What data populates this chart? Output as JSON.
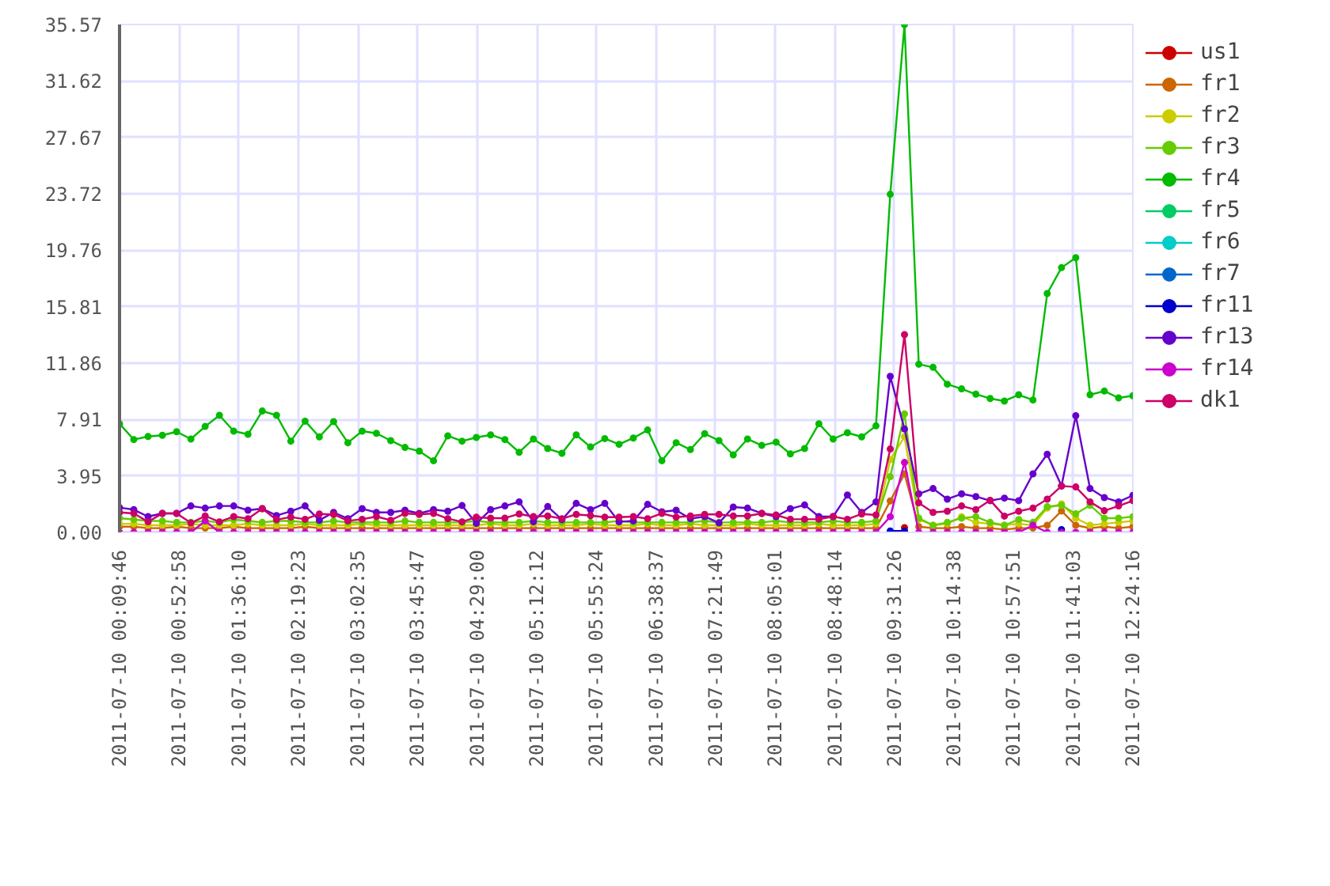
{
  "chart_data": {
    "type": "line",
    "marker": "circle",
    "grid": true,
    "legend": "right",
    "x": [
      "2011-07-10T00:09:46",
      "2011-07-10T00:20:06",
      "2011-07-10T00:30:27",
      "2011-07-10T00:40:48",
      "2011-07-10T00:51:08",
      "2011-07-10T01:01:29",
      "2011-07-10T01:11:50",
      "2011-07-10T01:22:10",
      "2011-07-10T01:32:31",
      "2011-07-10T01:42:52",
      "2011-07-10T01:53:13",
      "2011-07-10T02:03:33",
      "2011-07-10T02:13:54",
      "2011-07-10T02:24:15",
      "2011-07-10T02:34:35",
      "2011-07-10T02:44:56",
      "2011-07-10T02:55:17",
      "2011-07-10T03:05:38",
      "2011-07-10T03:15:58",
      "2011-07-10T03:26:19",
      "2011-07-10T03:36:40",
      "2011-07-10T03:47:00",
      "2011-07-10T03:57:21",
      "2011-07-10T04:07:42",
      "2011-07-10T04:18:02",
      "2011-07-10T04:28:23",
      "2011-07-10T04:38:44",
      "2011-07-10T04:49:05",
      "2011-07-10T04:59:25",
      "2011-07-10T05:09:46",
      "2011-07-10T05:20:07",
      "2011-07-10T05:30:27",
      "2011-07-10T05:40:48",
      "2011-07-10T05:51:09",
      "2011-07-10T06:01:29",
      "2011-07-10T06:11:50",
      "2011-07-10T06:22:11",
      "2011-07-10T06:32:32",
      "2011-07-10T06:42:52",
      "2011-07-10T06:53:13",
      "2011-07-10T07:03:34",
      "2011-07-10T07:13:54",
      "2011-07-10T07:24:15",
      "2011-07-10T07:34:36",
      "2011-07-10T07:44:57",
      "2011-07-10T07:55:17",
      "2011-07-10T08:05:38",
      "2011-07-10T08:15:59",
      "2011-07-10T08:26:19",
      "2011-07-10T08:36:40",
      "2011-07-10T08:47:01",
      "2011-07-10T08:57:21",
      "2011-07-10T09:07:42",
      "2011-07-10T09:18:03",
      "2011-07-10T09:28:24",
      "2011-07-10T09:38:44",
      "2011-07-10T09:49:05",
      "2011-07-10T09:59:26",
      "2011-07-10T10:09:46",
      "2011-07-10T10:20:07",
      "2011-07-10T10:30:28",
      "2011-07-10T10:40:48",
      "2011-07-10T10:51:09",
      "2011-07-10T11:01:30",
      "2011-07-10T11:11:51",
      "2011-07-10T11:22:11",
      "2011-07-10T11:32:32",
      "2011-07-10T11:42:53",
      "2011-07-10T11:53:13",
      "2011-07-10T12:03:34",
      "2011-07-10T12:13:55",
      "2011-07-10T12:24:16"
    ],
    "xlim": [
      "2011-07-10T00:09:46",
      "2011-07-10T12:24:16"
    ],
    "xticks": [
      {
        "value": "2011-07-10T00:09:46",
        "label": "2011-07-10 00:09:46"
      },
      {
        "value": "2011-07-10T00:52:58",
        "label": "2011-07-10 00:52:58"
      },
      {
        "value": "2011-07-10T01:36:10",
        "label": "2011-07-10 01:36:10"
      },
      {
        "value": "2011-07-10T02:19:23",
        "label": "2011-07-10 02:19:23"
      },
      {
        "value": "2011-07-10T03:02:35",
        "label": "2011-07-10 03:02:35"
      },
      {
        "value": "2011-07-10T03:45:47",
        "label": "2011-07-10 03:45:47"
      },
      {
        "value": "2011-07-10T04:29:00",
        "label": "2011-07-10 04:29:00"
      },
      {
        "value": "2011-07-10T05:12:12",
        "label": "2011-07-10 05:12:12"
      },
      {
        "value": "2011-07-10T05:55:24",
        "label": "2011-07-10 05:55:24"
      },
      {
        "value": "2011-07-10T06:38:37",
        "label": "2011-07-10 06:38:37"
      },
      {
        "value": "2011-07-10T07:21:49",
        "label": "2011-07-10 07:21:49"
      },
      {
        "value": "2011-07-10T08:05:01",
        "label": "2011-07-10 08:05:01"
      },
      {
        "value": "2011-07-10T08:48:14",
        "label": "2011-07-10 08:48:14"
      },
      {
        "value": "2011-07-10T09:31:26",
        "label": "2011-07-10 09:31:26"
      },
      {
        "value": "2011-07-10T10:14:38",
        "label": "2011-07-10 10:14:38"
      },
      {
        "value": "2011-07-10T10:57:51",
        "label": "2011-07-10 10:57:51"
      },
      {
        "value": "2011-07-10T11:41:03",
        "label": "2011-07-10 11:41:03"
      },
      {
        "value": "2011-07-10T12:24:16",
        "label": "2011-07-10 12:24:16"
      }
    ],
    "ylim": [
      0,
      35.57
    ],
    "yticks": [
      {
        "value": 0,
        "label": "0.00"
      },
      3.95,
      7.91,
      11.86,
      15.81,
      19.76,
      23.72,
      27.67,
      31.62,
      35.57
    ],
    "series": [
      {
        "name": "us1",
        "color": "#cc0000",
        "values": [
          null,
          null,
          null,
          null,
          null,
          null,
          null,
          null,
          null,
          null,
          null,
          null,
          null,
          null,
          null,
          null,
          null,
          null,
          null,
          null,
          null,
          null,
          null,
          null,
          null,
          null,
          null,
          null,
          null,
          null,
          null,
          null,
          null,
          null,
          null,
          null,
          null,
          null,
          null,
          null,
          null,
          null,
          null,
          null,
          null,
          null,
          null,
          null,
          null,
          null,
          null,
          null,
          null,
          null,
          null,
          0.33,
          null,
          null,
          null,
          null,
          null,
          null,
          null,
          null,
          null,
          null,
          null,
          null,
          null,
          null,
          null,
          null
        ]
      },
      {
        "name": "fr1",
        "color": "#cc6600",
        "values": [
          0.4,
          0.4,
          0.3,
          0.3,
          0.4,
          0.3,
          0.3,
          0.3,
          0.4,
          0.3,
          0.3,
          0.3,
          0.3,
          0.4,
          0.3,
          0.3,
          0.3,
          0.3,
          0.3,
          0.3,
          0.3,
          0.3,
          0.3,
          0.3,
          0.3,
          0.3,
          0.3,
          0.3,
          0.3,
          0.3,
          0.3,
          0.3,
          0.3,
          0.3,
          0.3,
          0.3,
          0.3,
          0.3,
          0.3,
          0.3,
          0.3,
          0.3,
          0.3,
          0.3,
          0.3,
          0.3,
          0.3,
          0.3,
          0.3,
          0.3,
          0.3,
          0.3,
          0.3,
          0.3,
          2.2,
          4.1,
          0.4,
          0.3,
          0.3,
          0.4,
          0.3,
          0.3,
          0.2,
          0.3,
          0.3,
          0.5,
          1.5,
          0.5,
          0.3,
          0.4,
          0.3,
          0.4
        ]
      },
      {
        "name": "fr2",
        "color": "#cccc00",
        "values": [
          0.6,
          0.6,
          0.5,
          0.5,
          0.5,
          0.6,
          0.5,
          0.5,
          0.5,
          0.6,
          0.5,
          0.5,
          0.5,
          0.6,
          0.5,
          0.5,
          0.5,
          0.6,
          0.5,
          0.5,
          0.5,
          0.5,
          0.5,
          0.5,
          0.5,
          0.5,
          0.6,
          0.5,
          0.5,
          0.6,
          0.5,
          0.5,
          0.5,
          0.6,
          0.5,
          0.5,
          0.5,
          0.6,
          0.5,
          0.5,
          0.6,
          0.5,
          0.5,
          0.5,
          0.6,
          0.5,
          0.5,
          0.5,
          0.5,
          0.6,
          0.5,
          0.5,
          0.5,
          0.6,
          5.1,
          6.7,
          0.9,
          0.5,
          0.6,
          1.1,
          0.7,
          0.6,
          0.5,
          0.6,
          0.5,
          1.7,
          2.0,
          1.0,
          0.5,
          0.6,
          0.7,
          0.8
        ]
      },
      {
        "name": "fr3",
        "color": "#66cc00",
        "values": [
          1.0,
          0.9,
          0.8,
          0.8,
          0.7,
          0.7,
          0.8,
          0.7,
          0.9,
          0.8,
          0.7,
          0.8,
          0.8,
          0.7,
          0.7,
          0.8,
          0.7,
          0.7,
          0.7,
          0.7,
          0.8,
          0.7,
          0.7,
          0.7,
          0.7,
          0.8,
          0.7,
          0.7,
          0.7,
          0.8,
          0.7,
          0.7,
          0.7,
          0.7,
          0.7,
          0.8,
          0.7,
          0.7,
          0.7,
          0.7,
          0.7,
          0.8,
          0.7,
          0.7,
          0.7,
          0.7,
          0.8,
          0.7,
          0.7,
          0.7,
          0.8,
          0.7,
          0.7,
          0.8,
          3.9,
          8.3,
          1.0,
          0.5,
          0.7,
          1.0,
          1.1,
          0.7,
          0.5,
          0.9,
          0.7,
          1.8,
          1.9,
          1.3,
          1.9,
          1.0,
          1.0,
          1.1
        ]
      },
      {
        "name": "fr4",
        "color": "#00bb00",
        "values": [
          7.61,
          6.5,
          6.72,
          6.8,
          7.05,
          6.54,
          7.42,
          8.2,
          7.09,
          6.87,
          8.5,
          8.2,
          6.39,
          7.79,
          6.69,
          7.76,
          6.28,
          7.09,
          6.94,
          6.43,
          5.95,
          5.69,
          5.02,
          6.76,
          6.39,
          6.65,
          6.83,
          6.5,
          5.61,
          6.54,
          5.87,
          5.54,
          6.83,
          5.98,
          6.57,
          6.17,
          6.61,
          7.17,
          5.02,
          6.28,
          5.8,
          6.91,
          6.43,
          5.43,
          6.54,
          6.09,
          6.32,
          5.5,
          5.87,
          7.61,
          6.54,
          6.98,
          6.69,
          7.46,
          23.68,
          35.57,
          11.78,
          11.56,
          10.38,
          10.05,
          9.68,
          9.38,
          9.2,
          9.64,
          9.27,
          16.73,
          18.54,
          19.24,
          9.64,
          9.9,
          9.42,
          9.57
        ]
      },
      {
        "name": "fr5",
        "color": "#00cc66",
        "values": [
          null,
          null,
          null,
          null,
          null,
          null,
          null,
          null,
          null,
          null,
          null,
          null,
          null,
          null,
          null,
          null,
          null,
          null,
          null,
          null,
          null,
          null,
          null,
          null,
          null,
          null,
          null,
          null,
          null,
          null,
          null,
          null,
          null,
          null,
          null,
          null,
          null,
          null,
          null,
          null,
          null,
          null,
          null,
          null,
          null,
          null,
          null,
          null,
          null,
          null,
          null,
          null,
          null,
          null,
          null,
          null,
          null,
          null,
          null,
          null,
          null,
          null,
          null,
          null,
          null,
          null,
          null,
          null,
          null,
          null,
          null,
          null
        ]
      },
      {
        "name": "fr6",
        "color": "#00cccc",
        "values": [
          null,
          null,
          null,
          null,
          null,
          null,
          null,
          null,
          null,
          null,
          null,
          null,
          null,
          null,
          null,
          null,
          null,
          null,
          null,
          null,
          null,
          null,
          null,
          null,
          null,
          null,
          null,
          null,
          null,
          null,
          null,
          null,
          null,
          null,
          null,
          null,
          null,
          null,
          null,
          null,
          null,
          null,
          null,
          null,
          null,
          null,
          null,
          null,
          null,
          null,
          null,
          null,
          null,
          null,
          null,
          null,
          null,
          null,
          null,
          null,
          null,
          null,
          null,
          null,
          null,
          null,
          null,
          null,
          null,
          null,
          null,
          null
        ]
      },
      {
        "name": "fr7",
        "color": "#0066cc",
        "values": [
          null,
          null,
          null,
          null,
          null,
          null,
          null,
          null,
          null,
          null,
          null,
          null,
          null,
          null,
          null,
          null,
          null,
          null,
          null,
          null,
          null,
          null,
          null,
          null,
          null,
          null,
          null,
          null,
          null,
          null,
          null,
          null,
          null,
          null,
          null,
          null,
          null,
          null,
          null,
          null,
          null,
          null,
          null,
          null,
          null,
          null,
          null,
          null,
          null,
          null,
          null,
          null,
          null,
          null,
          null,
          null,
          null,
          null,
          null,
          null,
          null,
          null,
          null,
          null,
          null,
          null,
          null,
          null,
          null,
          null,
          null,
          null
        ]
      },
      {
        "name": "fr11",
        "color": "#0000cc",
        "values": [
          null,
          null,
          null,
          null,
          null,
          null,
          null,
          null,
          null,
          null,
          null,
          null,
          null,
          null,
          null,
          null,
          null,
          null,
          null,
          null,
          null,
          null,
          null,
          null,
          null,
          null,
          null,
          null,
          null,
          null,
          null,
          null,
          null,
          null,
          null,
          null,
          null,
          null,
          null,
          null,
          null,
          null,
          null,
          null,
          null,
          null,
          null,
          null,
          null,
          null,
          null,
          null,
          null,
          null,
          0.1,
          0.1,
          null,
          null,
          null,
          null,
          null,
          null,
          null,
          null,
          null,
          null,
          0.2,
          null,
          null,
          null,
          null,
          null
        ]
      },
      {
        "name": "fr13",
        "color": "#6600cc",
        "values": [
          1.74,
          1.59,
          1.11,
          1.33,
          1.33,
          1.85,
          1.7,
          1.85,
          1.85,
          1.55,
          1.66,
          1.18,
          1.48,
          1.85,
          0.85,
          1.4,
          0.96,
          1.66,
          1.4,
          1.4,
          1.55,
          1.33,
          1.59,
          1.48,
          1.88,
          0.63,
          1.59,
          1.85,
          2.14,
          0.74,
          1.81,
          0.89,
          2.03,
          1.59,
          2.03,
          0.74,
          0.81,
          1.96,
          1.44,
          1.55,
          0.96,
          1.11,
          0.66,
          1.77,
          1.7,
          1.33,
          1.11,
          1.66,
          1.92,
          1.11,
          1.11,
          2.62,
          1.4,
          2.14,
          10.93,
          7.24,
          2.7,
          3.07,
          2.33,
          2.7,
          2.51,
          2.22,
          2.4,
          2.22,
          4.1,
          5.47,
          3.25,
          8.17,
          3.07,
          2.44,
          2.14,
          2.59
        ]
      },
      {
        "name": "fr14",
        "color": "#cc00cc",
        "values": [
          0,
          0,
          0,
          0,
          0,
          0,
          0.8,
          0,
          0,
          0,
          0,
          0,
          0,
          0,
          0,
          0,
          0,
          0,
          0,
          0,
          0,
          0,
          0,
          0,
          0,
          0,
          0,
          0,
          0,
          0,
          0,
          0,
          0,
          0,
          0,
          0,
          0,
          0,
          0,
          0,
          0,
          0,
          0,
          0,
          0,
          0,
          0,
          0,
          0,
          0,
          0,
          0,
          0,
          0,
          1.1,
          4.9,
          0,
          0,
          0,
          0,
          0,
          0,
          0,
          0,
          0.5,
          0,
          0,
          0,
          0,
          0,
          0,
          0
        ]
      },
      {
        "name": "dk1",
        "color": "#cc0066",
        "values": [
          1.4,
          1.33,
          0.74,
          1.33,
          1.33,
          0.66,
          1.15,
          0.74,
          1.11,
          0.96,
          1.66,
          0.89,
          1.07,
          0.92,
          1.29,
          1.26,
          0.81,
          0.92,
          1.11,
          0.85,
          1.33,
          1.26,
          1.33,
          0.96,
          0.74,
          1.07,
          1.0,
          1.0,
          1.29,
          1.11,
          1.15,
          0.96,
          1.26,
          1.18,
          1.07,
          1.07,
          1.11,
          0.96,
          1.33,
          1.07,
          1.15,
          1.26,
          1.26,
          1.15,
          1.15,
          1.33,
          1.22,
          0.92,
          0.92,
          0.92,
          1.11,
          0.92,
          1.29,
          1.22,
          5.84,
          13.85,
          2.07,
          1.4,
          1.48,
          1.85,
          1.59,
          2.25,
          1.14,
          1.48,
          1.7,
          2.33,
          3.25,
          3.18,
          2.14,
          1.52,
          1.85,
          2.22
        ]
      }
    ]
  }
}
